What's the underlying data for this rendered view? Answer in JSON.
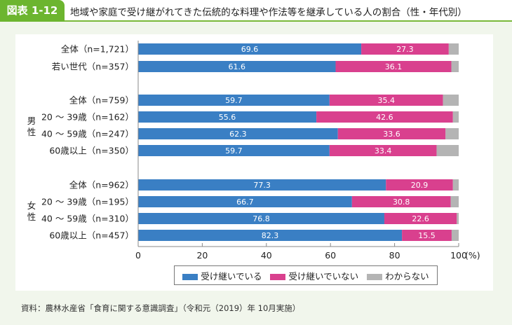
{
  "header": {
    "figure_no": "図表 1-12",
    "title": "地域や家庭で受け継がれてきた伝統的な料理や作法等を継承している人の割合（性・年代別）"
  },
  "chart_data": {
    "type": "bar",
    "orientation": "horizontal-stacked",
    "categories": [
      "全体（n=1,721）",
      "若い世代（n=357）",
      "全体（n=759）",
      "20 ～ 39歳（n=162）",
      "40 ～ 59歳（n=247）",
      "60歳以上（n=350）",
      "全体（n=962）",
      "20 ～ 39歳（n=195）",
      "40 ～ 59歳（n=310）",
      "60歳以上（n=457）"
    ],
    "groups": [
      {
        "label": "男性",
        "from": 2,
        "to": 5
      },
      {
        "label": "女性",
        "from": 6,
        "to": 9
      }
    ],
    "series": [
      {
        "name": "受け継いでいる",
        "color": "#3a7fc4",
        "values": [
          69.6,
          61.6,
          59.7,
          55.6,
          62.3,
          59.7,
          77.3,
          66.7,
          76.8,
          82.3
        ]
      },
      {
        "name": "受け継いでいない",
        "color": "#d9408e",
        "values": [
          27.3,
          36.1,
          35.4,
          42.6,
          33.6,
          33.4,
          20.9,
          30.8,
          22.6,
          15.5
        ]
      },
      {
        "name": "わからない",
        "color": "#b4b4b4",
        "values": [
          3.1,
          2.3,
          4.9,
          1.8,
          4.1,
          6.9,
          1.8,
          2.5,
          0.6,
          2.2
        ]
      }
    ],
    "xlim": [
      0,
      100
    ],
    "xticks": [
      "0",
      "20",
      "40",
      "60",
      "80",
      "100"
    ],
    "xunit": "(%)",
    "legend_position": "bottom"
  },
  "footnote": "資料：農林水産省「食育に関する意識調査」（令和元（2019）年 10月実施）"
}
